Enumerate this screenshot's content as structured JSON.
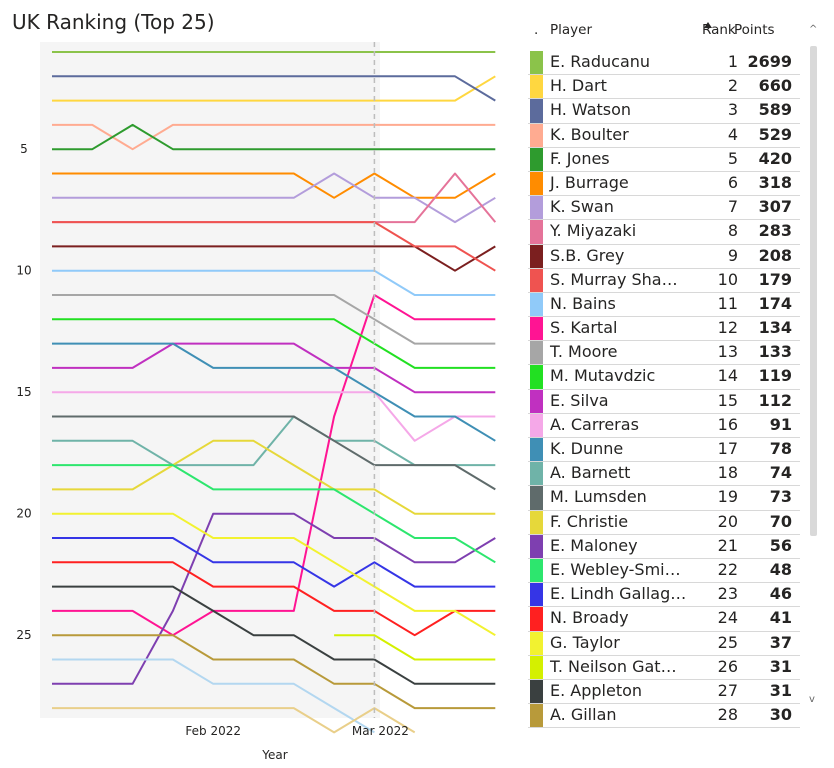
{
  "title": "UK Ranking (Top 25)",
  "chart_data": {
    "type": "line",
    "title": "UK Ranking (Top 25)",
    "xlabel": "Year",
    "ylabel": "",
    "y_reversed": true,
    "ylim": [
      0.5,
      28.5
    ],
    "yticks": [
      5,
      10,
      15,
      20,
      25
    ],
    "x_tick_labels": [
      {
        "label": "Feb 2022",
        "week": 4
      },
      {
        "label": "Mar 2022",
        "week": 8
      }
    ],
    "reference_line_week": 8,
    "x_weeks": [
      0,
      1,
      2,
      3,
      4,
      5,
      6,
      7,
      8,
      9,
      10,
      11
    ],
    "series": [
      {
        "name": "E. Raducanu",
        "color": "#8bc34a",
        "values": [
          1,
          1,
          1,
          1,
          1,
          1,
          1,
          1,
          1,
          1,
          1,
          1
        ]
      },
      {
        "name": "H. Dart",
        "color": "#ffd740",
        "values": [
          3,
          3,
          3,
          3,
          3,
          3,
          3,
          3,
          3,
          3,
          3,
          2
        ]
      },
      {
        "name": "H. Watson",
        "color": "#5c6b9c",
        "values": [
          2,
          2,
          2,
          2,
          2,
          2,
          2,
          2,
          2,
          2,
          2,
          3
        ]
      },
      {
        "name": "K. Boulter",
        "color": "#ffab91",
        "values": [
          4,
          4,
          5,
          4,
          4,
          4,
          4,
          4,
          4,
          4,
          4,
          4
        ]
      },
      {
        "name": "F. Jones",
        "color": "#2e9b2e",
        "values": [
          5,
          5,
          4,
          5,
          5,
          5,
          5,
          5,
          5,
          5,
          5,
          5
        ]
      },
      {
        "name": "J. Burrage",
        "color": "#ff8c00",
        "values": [
          6,
          6,
          6,
          6,
          6,
          6,
          6,
          7,
          6,
          7,
          7,
          6
        ]
      },
      {
        "name": "K. Swan",
        "color": "#b39ddb",
        "values": [
          7,
          7,
          7,
          7,
          7,
          7,
          7,
          6,
          7,
          7,
          8,
          7
        ]
      },
      {
        "name": "Y. Miyazaki",
        "color": "#e57399",
        "values": [
          8,
          8,
          8,
          8,
          8,
          8,
          8,
          8,
          8,
          8,
          6,
          8
        ]
      },
      {
        "name": "S.B. Grey",
        "color": "#7b1f1f",
        "values": [
          9,
          9,
          9,
          9,
          9,
          9,
          9,
          9,
          9,
          9,
          10,
          9
        ]
      },
      {
        "name": "S. Murray Sha…",
        "color": "#ef5350",
        "values": [
          8,
          8,
          8,
          8,
          8,
          8,
          8,
          8,
          8,
          9,
          9,
          10
        ]
      },
      {
        "name": "N. Bains",
        "color": "#90caf9",
        "values": [
          10,
          10,
          10,
          10,
          10,
          10,
          10,
          10,
          10,
          11,
          11,
          11
        ]
      },
      {
        "name": "S. Kartal",
        "color": "#ff1493",
        "values": [
          24,
          24,
          24,
          25,
          24,
          24,
          24,
          16,
          11,
          12,
          12,
          12
        ]
      },
      {
        "name": "T. Moore",
        "color": "#a6a6a6",
        "values": [
          11,
          11,
          11,
          11,
          11,
          11,
          11,
          11,
          12,
          13,
          13,
          13
        ]
      },
      {
        "name": "M. Mutavdzic",
        "color": "#22e022",
        "values": [
          12,
          12,
          12,
          12,
          12,
          12,
          12,
          12,
          13,
          14,
          14,
          14
        ]
      },
      {
        "name": "E. Silva",
        "color": "#c030c0",
        "values": [
          14,
          14,
          14,
          13,
          13,
          13,
          13,
          14,
          14,
          15,
          15,
          15
        ]
      },
      {
        "name": "A. Carreras",
        "color": "#f5a8e8",
        "values": [
          15,
          15,
          15,
          15,
          15,
          15,
          15,
          15,
          15,
          17,
          16,
          16
        ]
      },
      {
        "name": "K. Dunne",
        "color": "#3f8fb5",
        "values": [
          13,
          13,
          13,
          13,
          14,
          14,
          14,
          14,
          15,
          16,
          16,
          17
        ]
      },
      {
        "name": "A. Barnett",
        "color": "#6fb3a8",
        "values": [
          17,
          17,
          17,
          18,
          18,
          18,
          16,
          17,
          17,
          18,
          18,
          18
        ]
      },
      {
        "name": "M. Lumsden",
        "color": "#5f6b6b",
        "values": [
          16,
          16,
          16,
          16,
          16,
          16,
          16,
          17,
          18,
          18,
          18,
          19
        ]
      },
      {
        "name": "F. Christie",
        "color": "#e6d83a",
        "values": [
          19,
          19,
          19,
          18,
          17,
          17,
          18,
          19,
          19,
          20,
          20,
          20
        ]
      },
      {
        "name": "E. Maloney",
        "color": "#7e3fb0",
        "values": [
          27,
          27,
          27,
          24,
          20,
          20,
          20,
          21,
          21,
          22,
          22,
          21
        ]
      },
      {
        "name": "E. Webley-Smi…",
        "color": "#2de66e",
        "values": [
          18,
          18,
          18,
          18,
          19,
          19,
          19,
          19,
          20,
          21,
          21,
          22
        ]
      },
      {
        "name": "E. Lindh Gallag…",
        "color": "#3535e6",
        "values": [
          21,
          21,
          21,
          21,
          22,
          22,
          22,
          23,
          22,
          23,
          23,
          23
        ]
      },
      {
        "name": "N. Broady",
        "color": "#ff2020",
        "values": [
          22,
          22,
          22,
          22,
          23,
          23,
          23,
          24,
          24,
          25,
          24,
          24
        ]
      },
      {
        "name": "G. Taylor",
        "color": "#f2f230",
        "values": [
          20,
          20,
          20,
          20,
          21,
          21,
          21,
          22,
          23,
          24,
          24,
          25
        ]
      },
      {
        "name": "T. Neilson Gat…",
        "color": "#d4f000",
        "values": [
          null,
          null,
          null,
          null,
          null,
          null,
          null,
          25,
          25,
          26,
          26,
          26
        ]
      },
      {
        "name": "E. Appleton",
        "color": "#3a4040",
        "values": [
          23,
          23,
          23,
          23,
          24,
          25,
          25,
          26,
          26,
          27,
          27,
          27
        ]
      },
      {
        "name": "A. Gillan",
        "color": "#b89a3a",
        "values": [
          25,
          25,
          25,
          25,
          26,
          26,
          26,
          27,
          27,
          28,
          28,
          28
        ]
      },
      {
        "name": "",
        "color": "#b3d7f0",
        "values": [
          26,
          26,
          26,
          26,
          27,
          27,
          27,
          28,
          29,
          null,
          null,
          null
        ]
      },
      {
        "name": "",
        "color": "#e9cf8a",
        "values": [
          28,
          28,
          28,
          28,
          28,
          28,
          28,
          29,
          28,
          29,
          null,
          null
        ]
      }
    ]
  },
  "table": {
    "header": {
      "col0": ".",
      "player": "Player",
      "rank": "Rank",
      "points": "Points"
    },
    "rows": [
      {
        "player": "E. Raducanu",
        "rank": "1",
        "points": "2699",
        "color": "#8bc34a"
      },
      {
        "player": "H. Dart",
        "rank": "2",
        "points": "660",
        "color": "#ffd740"
      },
      {
        "player": "H. Watson",
        "rank": "3",
        "points": "589",
        "color": "#5c6b9c"
      },
      {
        "player": "K. Boulter",
        "rank": "4",
        "points": "529",
        "color": "#ffab91"
      },
      {
        "player": "F. Jones",
        "rank": "5",
        "points": "420",
        "color": "#2e9b2e"
      },
      {
        "player": "J. Burrage",
        "rank": "6",
        "points": "318",
        "color": "#ff8c00"
      },
      {
        "player": "K. Swan",
        "rank": "7",
        "points": "307",
        "color": "#b39ddb"
      },
      {
        "player": "Y. Miyazaki",
        "rank": "8",
        "points": "283",
        "color": "#e57399"
      },
      {
        "player": "S.B. Grey",
        "rank": "9",
        "points": "208",
        "color": "#7b1f1f"
      },
      {
        "player": "S. Murray Sha…",
        "rank": "10",
        "points": "179",
        "color": "#ef5350"
      },
      {
        "player": "N. Bains",
        "rank": "11",
        "points": "174",
        "color": "#90caf9"
      },
      {
        "player": "S. Kartal",
        "rank": "12",
        "points": "134",
        "color": "#ff1493"
      },
      {
        "player": "T. Moore",
        "rank": "13",
        "points": "133",
        "color": "#a6a6a6"
      },
      {
        "player": "M. Mutavdzic",
        "rank": "14",
        "points": "119",
        "color": "#22e022"
      },
      {
        "player": "E. Silva",
        "rank": "15",
        "points": "112",
        "color": "#c030c0"
      },
      {
        "player": "A. Carreras",
        "rank": "16",
        "points": "91",
        "color": "#f5a8e8"
      },
      {
        "player": "K. Dunne",
        "rank": "17",
        "points": "78",
        "color": "#3f8fb5"
      },
      {
        "player": "A. Barnett",
        "rank": "18",
        "points": "74",
        "color": "#6fb3a8"
      },
      {
        "player": "M. Lumsden",
        "rank": "19",
        "points": "73",
        "color": "#5f6b6b"
      },
      {
        "player": "F. Christie",
        "rank": "20",
        "points": "70",
        "color": "#e6d83a"
      },
      {
        "player": "E. Maloney",
        "rank": "21",
        "points": "56",
        "color": "#7e3fb0"
      },
      {
        "player": "E. Webley-Smi…",
        "rank": "22",
        "points": "48",
        "color": "#2de66e"
      },
      {
        "player": "E. Lindh Gallag…",
        "rank": "23",
        "points": "46",
        "color": "#3535e6"
      },
      {
        "player": "N. Broady",
        "rank": "24",
        "points": "41",
        "color": "#ff2020"
      },
      {
        "player": "G. Taylor",
        "rank": "25",
        "points": "37",
        "color": "#f2f230"
      },
      {
        "player": "T. Neilson Gat…",
        "rank": "26",
        "points": "31",
        "color": "#d4f000"
      },
      {
        "player": "E. Appleton",
        "rank": "27",
        "points": "31",
        "color": "#3a4040"
      },
      {
        "player": "A. Gillan",
        "rank": "28",
        "points": "30",
        "color": "#b89a3a"
      }
    ]
  }
}
